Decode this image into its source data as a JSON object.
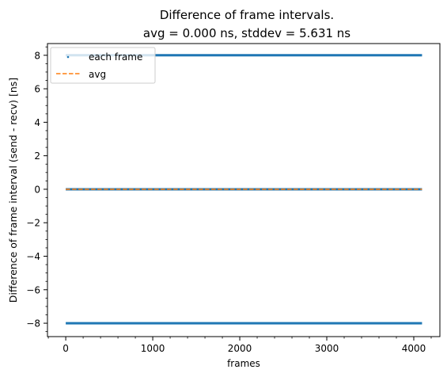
{
  "chart_data": {
    "type": "scatter",
    "title": "Difference of frame intervals.",
    "subtitle": "avg = 0.000 ns, stddev = 5.631 ns",
    "xlabel": "frames",
    "ylabel": "Difference of frame interval (send - recv) [ns]",
    "xlim": [
      -210,
      4300
    ],
    "ylim": [
      -8.8,
      8.7
    ],
    "x_ticks": [
      0,
      1000,
      2000,
      3000,
      4000
    ],
    "y_ticks": [
      -8,
      -6,
      -4,
      -2,
      0,
      2,
      4,
      6,
      8
    ],
    "grid": false,
    "legend_position": "top-left",
    "series": [
      {
        "name": "each frame",
        "style": "dots",
        "color": "#1f77b4",
        "values": [
          {
            "x_range": [
              0,
              4095
            ],
            "y": 8
          },
          {
            "x_range": [
              0,
              4095
            ],
            "y": 0
          },
          {
            "x_range": [
              0,
              4095
            ],
            "y": -8
          }
        ]
      },
      {
        "name": "avg",
        "style": "dashed-line",
        "color": "#ff7f0e",
        "x_range": [
          0,
          4095
        ],
        "y": 0.0
      }
    ]
  }
}
